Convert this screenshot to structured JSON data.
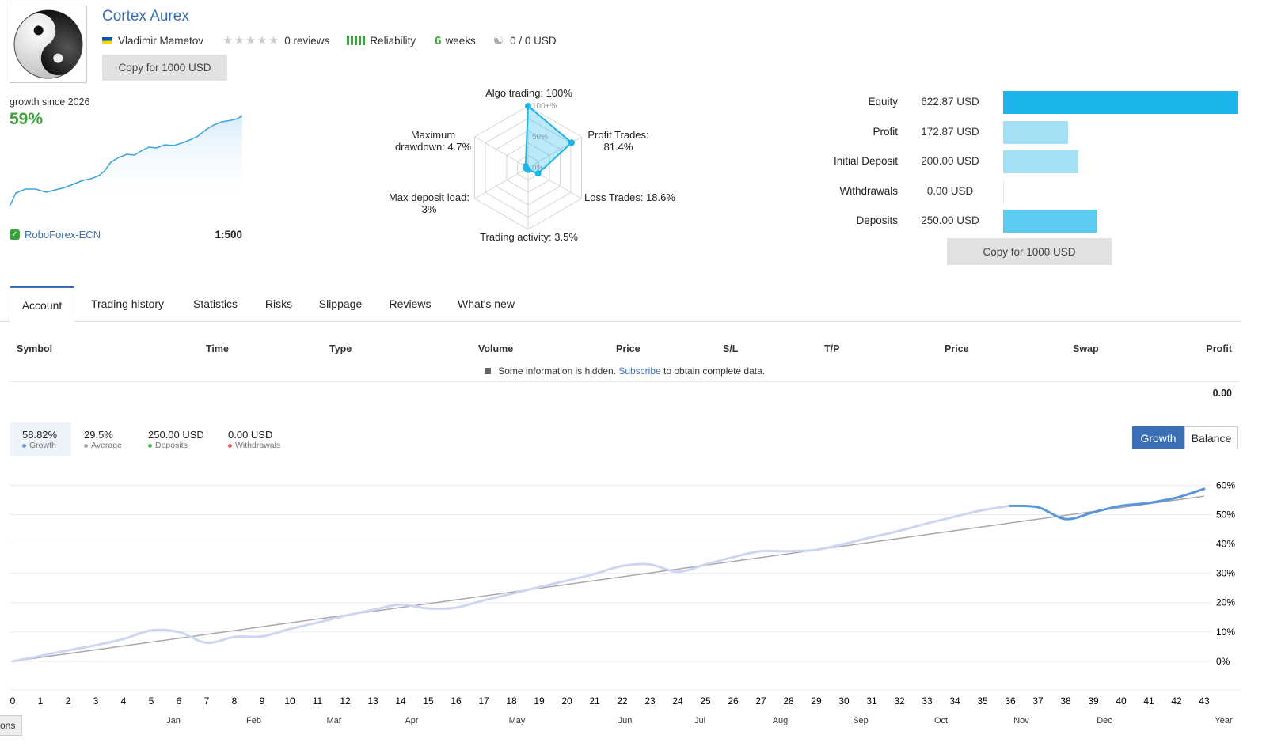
{
  "header": {
    "title": "Cortex Aurex",
    "author": "Vladimir Mametov",
    "reviews": "0 reviews",
    "reliability": "Reliability",
    "weeks_num": "6",
    "weeks_label": "weeks",
    "subscribers": "0 / 0 USD",
    "copy_button": "Copy for 1000 USD",
    "rating": 0
  },
  "summary": {
    "growth_label": "growth since 2026",
    "growth_value": "59%",
    "broker": "RoboForex-ECN",
    "leverage": "1:500"
  },
  "radar": {
    "algo": "Algo trading: 100%",
    "profit_trades_1": "Profit Trades:",
    "profit_trades_2": "81.4%",
    "loss_trades": "Loss Trades: 18.6%",
    "activity": "Trading activity: 3.5%",
    "deposit_load_1": "Max deposit load:",
    "deposit_load_2": "3%",
    "drawdown_1": "Maximum",
    "drawdown_2": "drawdown: 4.7%",
    "scale_100": "100+%",
    "scale_50": "50%",
    "scale_0": "0%",
    "values": {
      "algo": 100,
      "profit_trades": 81.4,
      "loss_trades": 18.6,
      "activity": 3.5,
      "deposit_load": 3,
      "drawdown": 4.7
    }
  },
  "equity": {
    "rows": [
      {
        "label": "Equity",
        "value": "622.87 USD",
        "color": "#1cb5ea",
        "amount": 622.87
      },
      {
        "label": "Profit",
        "value": "172.87 USD",
        "color": "#a6e0f5",
        "amount": 172.87
      },
      {
        "label": "Initial Deposit",
        "value": "200.00 USD",
        "color": "#a6e0f5",
        "amount": 200.0
      },
      {
        "label": "Withdrawals",
        "value": "0.00 USD",
        "color": "#a6e0f5",
        "amount": 0
      },
      {
        "label": "Deposits",
        "value": "250.00 USD",
        "color": "#5ccbef",
        "amount": 250.0
      }
    ],
    "copy_button": "Copy for 1000 USD"
  },
  "tabs": [
    "Account",
    "Trading history",
    "Statistics",
    "Risks",
    "Slippage",
    "Reviews",
    "What's new"
  ],
  "table": {
    "headers": [
      "Symbol",
      "Time",
      "Type",
      "Volume",
      "Price",
      "S/L",
      "T/P",
      "Price",
      "Swap",
      "Profit"
    ],
    "hidden_prefix": "Some information is hidden.",
    "hidden_link": "Subscribe",
    "hidden_suffix": "to obtain complete data.",
    "total": "0.00"
  },
  "legend": [
    {
      "value": "58.82%",
      "name": "Growth",
      "color": "#6aa0d8"
    },
    {
      "value": "29.5%",
      "name": "Average",
      "color": "#aaaaaa"
    },
    {
      "value": "250.00 USD",
      "name": "Deposits",
      "color": "#5cb85c"
    },
    {
      "value": "0.00 USD",
      "name": "Withdrawals",
      "color": "#e06666"
    }
  ],
  "chart_toggle": {
    "growth": "Growth",
    "balance": "Balance"
  },
  "corner_tab": "ons",
  "chart_data": {
    "type": "line",
    "ylim": [
      -3,
      62
    ],
    "y_ticks": [
      "0%",
      "10%",
      "20%",
      "30%",
      "40%",
      "50%",
      "60%"
    ],
    "x_ticks": [
      "0",
      "1",
      "2",
      "3",
      "4",
      "5",
      "6",
      "7",
      "8",
      "9",
      "10",
      "11",
      "12",
      "13",
      "14",
      "15",
      "16",
      "17",
      "18",
      "19",
      "20",
      "21",
      "22",
      "23",
      "24",
      "25",
      "26",
      "27",
      "28",
      "29",
      "30",
      "31",
      "32",
      "33",
      "34",
      "35",
      "36",
      "37",
      "38",
      "39",
      "40",
      "41",
      "42",
      "43"
    ],
    "month_labels": [
      "Jan",
      "Feb",
      "Mar",
      "Apr",
      "May",
      "Jun",
      "Jul",
      "Aug",
      "Sep",
      "Oct",
      "Nov",
      "Dec",
      "Year"
    ],
    "series": [
      {
        "x": [
          0,
          1,
          2,
          3,
          4,
          5,
          6,
          7,
          8,
          9,
          10,
          11,
          12,
          13,
          14,
          15,
          16,
          17,
          18,
          19,
          20,
          21,
          22,
          23,
          24,
          25,
          26,
          27,
          28,
          29,
          30,
          31,
          32,
          33,
          34,
          35,
          36
        ],
        "values": [
          0,
          1.8,
          3.7,
          5.5,
          7.6,
          10.5,
          10.0,
          6.3,
          8.3,
          8.5,
          11.0,
          13.2,
          15.5,
          17.5,
          19.3,
          18.0,
          18.3,
          20.8,
          23.0,
          25.3,
          27.5,
          29.8,
          32.5,
          33.0,
          30.5,
          33.0,
          35.5,
          37.5,
          37.5,
          38.0,
          40.0,
          42.3,
          44.5,
          47.0,
          49.3,
          51.5,
          53.0
        ]
      },
      {
        "x": [
          36,
          37,
          38,
          39,
          40,
          41,
          42,
          43
        ],
        "values": [
          53.0,
          52.5,
          48.5,
          50.8,
          53.0,
          54.0,
          55.8,
          58.8
        ]
      },
      {
        "x": [
          0,
          43
        ],
        "values": [
          0,
          56.3
        ]
      }
    ]
  }
}
